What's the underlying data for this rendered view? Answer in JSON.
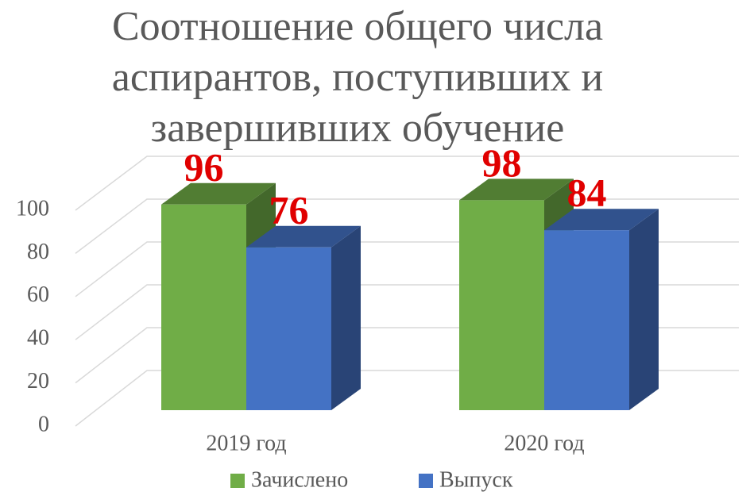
{
  "chart_data": {
    "type": "bar3d",
    "title": "Соотношение общего числа аспирантов, поступивших и завершивших обучение",
    "categories": [
      "2019 год",
      "2020 год"
    ],
    "series": [
      {
        "name": "Зачислено",
        "color": "#70ad47",
        "values": [
          96,
          98
        ]
      },
      {
        "name": "Выпуск",
        "color": "#4472c4",
        "values": [
          76,
          84
        ]
      }
    ],
    "value_label_color": "#e00000",
    "ylim": [
      0,
      100
    ],
    "yticks": [
      0,
      20,
      40,
      60,
      80,
      100
    ],
    "grid": true,
    "legend": "bottom"
  }
}
